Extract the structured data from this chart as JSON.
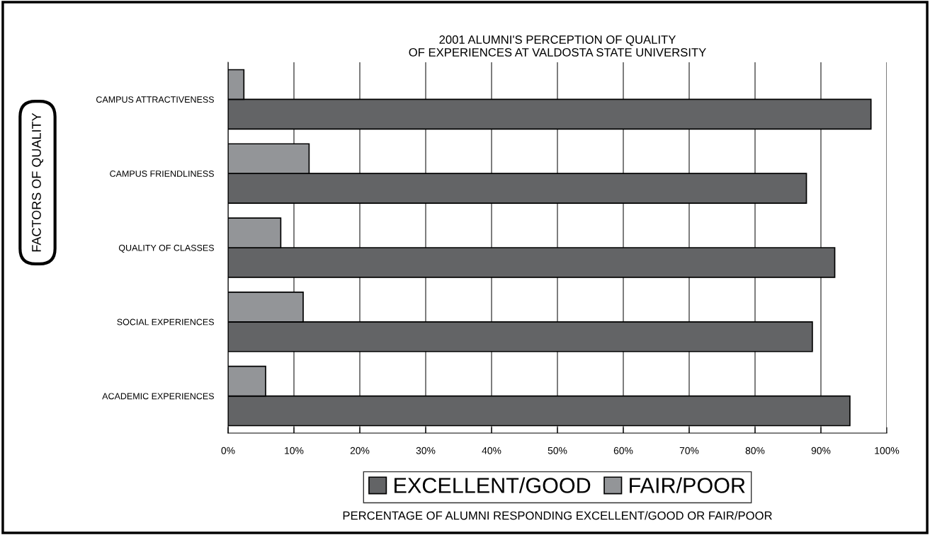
{
  "chart_data": {
    "type": "bar",
    "orientation": "horizontal",
    "title": "2001 ALUMNI'S PERCEPTION OF QUALITY\nOF EXPERIENCES AT VALDOSTA STATE UNIVERSITY",
    "annotations": [
      "PERCENTAGE OF ALUMNI RESPONDING EXCELLENT/GOOD OR FAIR/POOR"
    ],
    "ylabel": "FACTORS OF QUALITY",
    "categories": [
      "CAMPUS ATTRACTIVENESS",
      "CAMPUS FRIENDLINESS",
      "QUALITY OF CLASSES",
      "SOCIAL EXPERIENCES",
      "ACADEMIC EXPERIENCES"
    ],
    "series": [
      {
        "name": "EXCELLENT/GOOD",
        "color": "#636466",
        "values": [
          97.6,
          87.8,
          92.1,
          88.7,
          94.4
        ]
      },
      {
        "name": "FAIR/POOR",
        "color": "#939598",
        "values": [
          2.4,
          12.3,
          8.0,
          11.4,
          5.7
        ]
      }
    ],
    "xlim": [
      0,
      100
    ],
    "xticks": [
      {
        "value": 0,
        "label": "0%"
      },
      {
        "value": 10,
        "label": "10%"
      },
      {
        "value": 20,
        "label": "20%"
      },
      {
        "value": 30,
        "label": "30%"
      },
      {
        "value": 40,
        "label": "40%"
      },
      {
        "value": 50,
        "label": "50%"
      },
      {
        "value": 60,
        "label": "60%"
      },
      {
        "value": 70,
        "label": "70%"
      },
      {
        "value": 80,
        "label": "80%"
      },
      {
        "value": 90,
        "label": "90%"
      },
      {
        "value": 100,
        "label": "100%"
      }
    ],
    "grid": "x",
    "legend": "bottom"
  }
}
